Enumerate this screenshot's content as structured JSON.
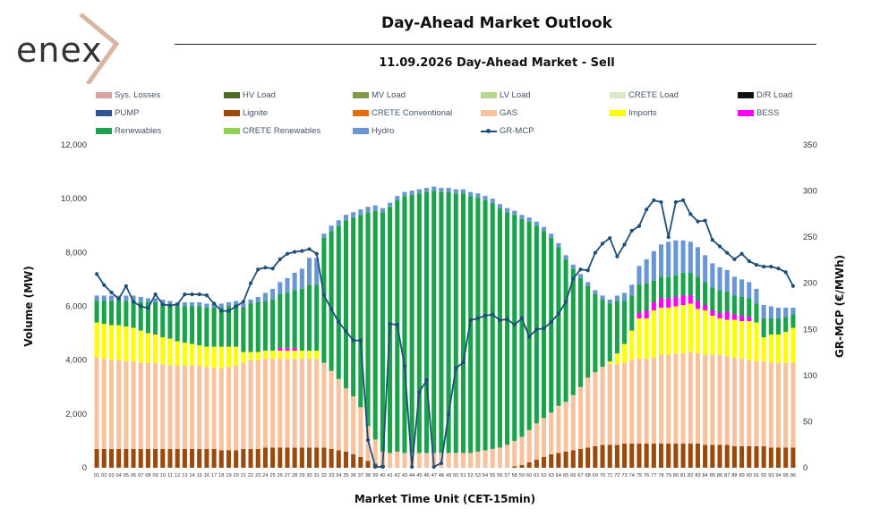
{
  "logo": {
    "text": "enex"
  },
  "header": {
    "title": "Day-Ahead Market Outlook",
    "subtitle": "11.09.2026  Day-Ahead Market - Sell"
  },
  "legend": [
    {
      "label": "Sys. Losses",
      "color": "#d9a3a3",
      "kind": "bar"
    },
    {
      "label": "HV Load",
      "color": "#4e6b2c",
      "kind": "bar"
    },
    {
      "label": "MV Load",
      "color": "#7f9a48",
      "kind": "bar"
    },
    {
      "label": "LV Load",
      "color": "#b5d88e",
      "kind": "bar"
    },
    {
      "label": "CRETE Load",
      "color": "#dbe8c6",
      "kind": "bar"
    },
    {
      "label": "D/R Load",
      "color": "#111111",
      "kind": "bar"
    },
    {
      "label": "PUMP",
      "color": "#2f5597",
      "kind": "bar"
    },
    {
      "label": "Lignite",
      "color": "#9c4a0c",
      "kind": "bar"
    },
    {
      "label": "CRETE Conventional",
      "color": "#e46c0a",
      "kind": "bar"
    },
    {
      "label": "GAS",
      "color": "#f8c29e",
      "kind": "bar"
    },
    {
      "label": "Imports",
      "color": "#ffff00",
      "kind": "bar"
    },
    {
      "label": "BESS",
      "color": "#ff00ff",
      "kind": "bar"
    },
    {
      "label": "Renewables",
      "color": "#1aa34a",
      "kind": "bar"
    },
    {
      "label": "CRETE Renewables",
      "color": "#92d050",
      "kind": "bar"
    },
    {
      "label": "Hydro",
      "color": "#6a96d4",
      "kind": "bar"
    },
    {
      "label": "GR-MCP",
      "color": "#1f4e79",
      "kind": "line"
    }
  ],
  "chart_data": {
    "type": "bar",
    "stacked": true,
    "xlabel": "Market Time Unit (CET-15min)",
    "ylabel": "Volume (MW)",
    "y2label": "GR-MCP (€/MWh)",
    "ylim": [
      0,
      12000
    ],
    "y2lim": [
      0,
      350
    ],
    "yticks": [
      "0",
      "2,000",
      "4,000",
      "6,000",
      "8,000",
      "10,000",
      "12,000"
    ],
    "y2ticks": [
      "0",
      "50",
      "100",
      "150",
      "200",
      "250",
      "300",
      "350"
    ],
    "categories": [
      "01",
      "02",
      "03",
      "04",
      "05",
      "06",
      "07",
      "08",
      "09",
      "10",
      "11",
      "12",
      "13",
      "14",
      "15",
      "16",
      "17",
      "18",
      "19",
      "20",
      "21",
      "22",
      "23",
      "24",
      "25",
      "26",
      "27",
      "28",
      "29",
      "30",
      "31",
      "32",
      "33",
      "34",
      "35",
      "36",
      "37",
      "38",
      "39",
      "40",
      "41",
      "42",
      "43",
      "44",
      "45",
      "46",
      "47",
      "48",
      "49",
      "50",
      "51",
      "52",
      "53",
      "54",
      "55",
      "56",
      "57",
      "58",
      "59",
      "60",
      "61",
      "62",
      "63",
      "64",
      "65",
      "66",
      "67",
      "68",
      "69",
      "70",
      "71",
      "72",
      "73",
      "74",
      "75",
      "76",
      "77",
      "78",
      "79",
      "80",
      "81",
      "82",
      "83",
      "84",
      "85",
      "86",
      "87",
      "88",
      "89",
      "90",
      "91",
      "92",
      "93",
      "94",
      "95",
      "96"
    ],
    "series": [
      {
        "name": "Lignite",
        "color": "#9c4a0c",
        "values": [
          700,
          700,
          700,
          700,
          700,
          700,
          700,
          700,
          700,
          700,
          700,
          700,
          700,
          700,
          700,
          700,
          700,
          650,
          650,
          650,
          700,
          700,
          700,
          750,
          750,
          750,
          750,
          750,
          750,
          750,
          750,
          750,
          700,
          650,
          600,
          500,
          400,
          250,
          150,
          100,
          0,
          0,
          0,
          0,
          0,
          0,
          0,
          0,
          0,
          0,
          0,
          0,
          0,
          0,
          0,
          0,
          0,
          50,
          100,
          200,
          300,
          400,
          500,
          550,
          600,
          650,
          700,
          750,
          800,
          850,
          850,
          850,
          900,
          900,
          900,
          900,
          900,
          900,
          900,
          900,
          900,
          900,
          900,
          850,
          850,
          850,
          850,
          800,
          800,
          800,
          800,
          800,
          750,
          750,
          750,
          750
        ]
      },
      {
        "name": "GAS",
        "color": "#f8c29e",
        "values": [
          3400,
          3350,
          3300,
          3300,
          3250,
          3250,
          3200,
          3200,
          3200,
          3150,
          3100,
          3100,
          3100,
          3100,
          3100,
          3050,
          3000,
          3050,
          3100,
          3150,
          3200,
          3300,
          3300,
          3300,
          3300,
          3300,
          3300,
          3300,
          3300,
          3300,
          3300,
          3150,
          2900,
          2650,
          2350,
          2150,
          1850,
          1300,
          900,
          500,
          550,
          600,
          550,
          550,
          550,
          550,
          550,
          550,
          550,
          550,
          550,
          550,
          600,
          650,
          700,
          750,
          850,
          950,
          1050,
          1200,
          1350,
          1450,
          1550,
          1750,
          1850,
          2050,
          2300,
          2600,
          2750,
          2900,
          3000,
          3000,
          3000,
          3100,
          3150,
          3150,
          3200,
          3300,
          3300,
          3350,
          3350,
          3400,
          3350,
          3350,
          3350,
          3350,
          3300,
          3300,
          3250,
          3200,
          3150,
          3150,
          3150,
          3150,
          3150,
          3150
        ]
      },
      {
        "name": "Imports",
        "color": "#ffff00",
        "values": [
          1300,
          1300,
          1300,
          1300,
          1300,
          1250,
          1200,
          1100,
          1050,
          1000,
          1000,
          900,
          850,
          800,
          750,
          750,
          800,
          800,
          750,
          700,
          400,
          300,
          300,
          300,
          300,
          300,
          300,
          300,
          300,
          300,
          300,
          0,
          0,
          0,
          0,
          0,
          0,
          0,
          0,
          0,
          0,
          0,
          0,
          0,
          0,
          0,
          0,
          0,
          0,
          0,
          0,
          0,
          0,
          0,
          0,
          0,
          0,
          0,
          0,
          0,
          0,
          0,
          0,
          0,
          0,
          0,
          0,
          0,
          0,
          0,
          100,
          400,
          700,
          1100,
          1500,
          1500,
          1750,
          1750,
          1750,
          1750,
          1800,
          1800,
          1650,
          1650,
          1450,
          1350,
          1350,
          1400,
          1400,
          1450,
          1450,
          900,
          1050,
          1050,
          1150,
          1300
        ]
      },
      {
        "name": "BESS",
        "color": "#ff00ff",
        "values": [
          0,
          0,
          0,
          0,
          0,
          0,
          0,
          0,
          0,
          0,
          0,
          0,
          0,
          0,
          0,
          0,
          0,
          0,
          0,
          0,
          0,
          0,
          0,
          0,
          0,
          100,
          100,
          100,
          0,
          0,
          0,
          0,
          0,
          0,
          0,
          0,
          0,
          0,
          0,
          0,
          0,
          0,
          0,
          0,
          0,
          0,
          0,
          0,
          0,
          0,
          0,
          0,
          0,
          0,
          0,
          0,
          0,
          0,
          0,
          0,
          0,
          0,
          0,
          0,
          0,
          0,
          0,
          0,
          0,
          0,
          0,
          0,
          0,
          0,
          200,
          300,
          300,
          350,
          350,
          350,
          350,
          300,
          300,
          200,
          200,
          200,
          300,
          200,
          200,
          150,
          0,
          0,
          0,
          0,
          0,
          0
        ]
      },
      {
        "name": "Renewables",
        "color": "#1aa34a",
        "values": [
          800,
          850,
          900,
          900,
          950,
          1000,
          1050,
          1150,
          1200,
          1250,
          1250,
          1300,
          1350,
          1400,
          1450,
          1450,
          1450,
          1450,
          1500,
          1550,
          1650,
          1800,
          1850,
          1850,
          1900,
          2000,
          2050,
          2150,
          2300,
          2450,
          2450,
          4650,
          5200,
          5700,
          6250,
          6650,
          7150,
          7950,
          8500,
          8900,
          9150,
          9350,
          9550,
          9600,
          9650,
          9700,
          9750,
          9700,
          9700,
          9650,
          9650,
          9550,
          9450,
          9300,
          9150,
          8900,
          8650,
          8400,
          8100,
          7750,
          7350,
          6950,
          6500,
          5900,
          5300,
          4700,
          4050,
          3400,
          2900,
          2500,
          2150,
          1950,
          1600,
          1300,
          1050,
          1000,
          800,
          800,
          800,
          800,
          850,
          850,
          900,
          850,
          850,
          850,
          750,
          700,
          700,
          700,
          700,
          700,
          600,
          600,
          550,
          500
        ]
      },
      {
        "name": "Hydro",
        "color": "#6a96d4",
        "values": [
          200,
          200,
          200,
          200,
          200,
          200,
          200,
          150,
          150,
          150,
          150,
          150,
          150,
          150,
          150,
          150,
          150,
          150,
          150,
          150,
          150,
          150,
          200,
          300,
          400,
          450,
          550,
          650,
          750,
          1000,
          1000,
          150,
          200,
          200,
          200,
          200,
          200,
          200,
          200,
          150,
          150,
          150,
          150,
          150,
          150,
          150,
          150,
          150,
          150,
          150,
          150,
          150,
          150,
          150,
          150,
          150,
          150,
          150,
          150,
          150,
          150,
          150,
          150,
          150,
          150,
          150,
          150,
          150,
          150,
          150,
          150,
          200,
          300,
          400,
          700,
          900,
          1100,
          1200,
          1300,
          1300,
          1200,
          1150,
          1100,
          1000,
          900,
          850,
          800,
          700,
          650,
          600,
          550,
          500,
          450,
          400,
          350,
          250
        ]
      }
    ],
    "line": {
      "name": "GR-MCP",
      "color": "#1f4e79",
      "axis": "right",
      "values": [
        210,
        198,
        190,
        183,
        197,
        180,
        175,
        173,
        188,
        177,
        176,
        177,
        188,
        188,
        188,
        187,
        178,
        170,
        170,
        175,
        180,
        200,
        215,
        217,
        216,
        226,
        232,
        234,
        235,
        237,
        232,
        187,
        172,
        158,
        148,
        138,
        138,
        30,
        1,
        1,
        156,
        155,
        110,
        1,
        82,
        95,
        1,
        5,
        58,
        108,
        114,
        160,
        162,
        165,
        166,
        160,
        161,
        155,
        162,
        142,
        150,
        151,
        158,
        167,
        180,
        205,
        215,
        214,
        233,
        243,
        249,
        229,
        242,
        257,
        262,
        280,
        290,
        288,
        250,
        288,
        290,
        275,
        267,
        268,
        247,
        240,
        233,
        226,
        232,
        224,
        220,
        218,
        218,
        216,
        212,
        197
      ]
    }
  }
}
